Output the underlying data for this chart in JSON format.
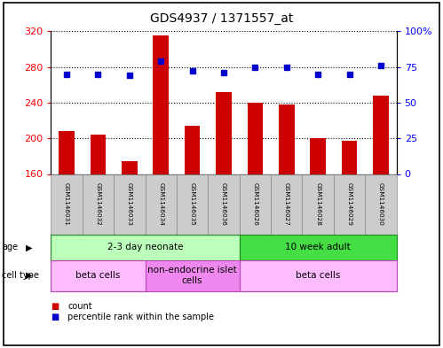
{
  "title": "GDS4937 / 1371557_at",
  "samples": [
    "GSM1146031",
    "GSM1146032",
    "GSM1146033",
    "GSM1146034",
    "GSM1146035",
    "GSM1146036",
    "GSM1146026",
    "GSM1146027",
    "GSM1146028",
    "GSM1146029",
    "GSM1146030"
  ],
  "counts": [
    208,
    204,
    174,
    315,
    214,
    252,
    240,
    238,
    200,
    197,
    248
  ],
  "percentiles": [
    70,
    70,
    69,
    79,
    72,
    71,
    75,
    75,
    70,
    70,
    76
  ],
  "ylim_left": [
    160,
    320
  ],
  "ylim_right": [
    0,
    100
  ],
  "yticks_left": [
    160,
    200,
    240,
    280,
    320
  ],
  "yticks_right": [
    0,
    25,
    50,
    75,
    100
  ],
  "bar_color": "#cc0000",
  "dot_color": "#0000cc",
  "age_groups": [
    {
      "label": "2-3 day neonate",
      "start": 0,
      "end": 6,
      "color": "#bbffbb"
    },
    {
      "label": "10 week adult",
      "start": 6,
      "end": 11,
      "color": "#44dd44"
    }
  ],
  "cell_type_groups": [
    {
      "label": "beta cells",
      "start": 0,
      "end": 3,
      "color": "#ffbbff"
    },
    {
      "label": "non-endocrine islet\ncells",
      "start": 3,
      "end": 6,
      "color": "#ee88ee"
    },
    {
      "label": "beta cells",
      "start": 6,
      "end": 11,
      "color": "#ffbbff"
    }
  ],
  "bg_color": "#ffffff",
  "tick_label_bg": "#cccccc",
  "border_color": "#000000"
}
